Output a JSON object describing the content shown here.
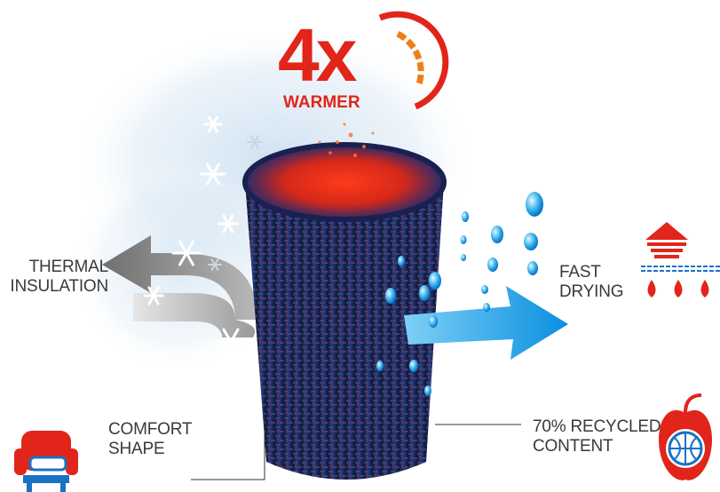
{
  "badge": {
    "multiplier": "4x",
    "word": "WARMER"
  },
  "features": {
    "thermal": {
      "line1": "THERMAL",
      "line2": "INSULATION"
    },
    "drying": {
      "line1": "FAST",
      "line2": "DRYING"
    },
    "comfort": {
      "line1": "COMFORT",
      "line2": "SHAPE"
    },
    "recycled": {
      "line1": "70% RECYCLED",
      "line2": "CONTENT"
    }
  },
  "colors": {
    "red": "#e1251b",
    "orange": "#f07d1a",
    "blue": "#1aa3e8",
    "navy": "#1b2550",
    "grey": "#8a8a8a"
  },
  "icons": [
    "snowflake-icon",
    "water-drop-icon",
    "armchair-icon",
    "apple-globe-icon",
    "drying-arrow-icon"
  ]
}
